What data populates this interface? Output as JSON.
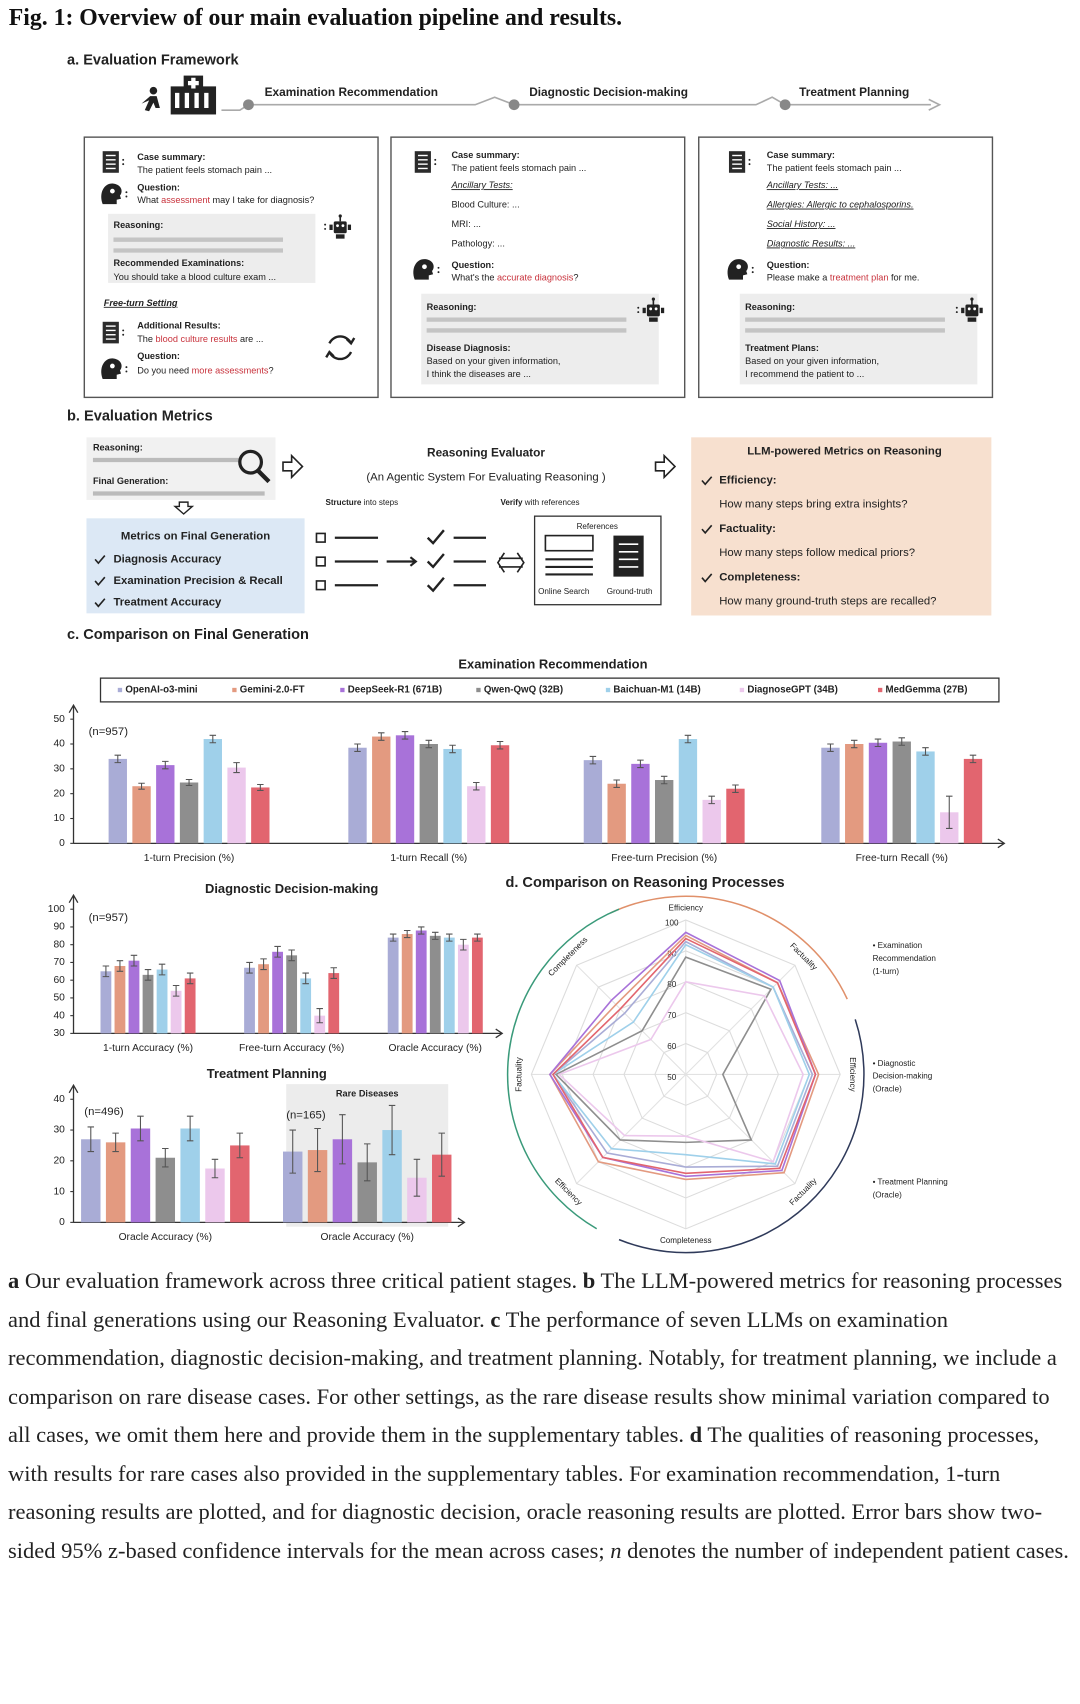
{
  "figure_title": "Fig. 1: Overview of our main evaluation pipeline and results.",
  "panel_a": {
    "heading": "a. Evaluation Framework",
    "stages": [
      "Examination Recommendation",
      "Diagnostic Decision-making",
      "Treatment Planning"
    ],
    "boxes": [
      {
        "case_label": "Case summary:",
        "case_text": "The patient feels stomach pain ...",
        "question_label": "Question:",
        "question": [
          "What ",
          "assessment",
          " may I take for diagnosis?"
        ],
        "reasoning": "Reasoning:",
        "output_label": "Recommended Examinations:",
        "output_text": [
          "You should take a blood culture exam ..."
        ],
        "free_turn": "Free-turn Setting",
        "additional_label": "Additional Results:",
        "additional_text": [
          "The ",
          "blood culture results",
          " are ..."
        ],
        "question2_label": "Question:",
        "question2": [
          "Do you need ",
          "more assessments",
          "?"
        ]
      },
      {
        "case_label": "Case summary:",
        "case_text": "The patient feels stomach pain ...",
        "fields": [
          "Ancillary Tests:",
          "Blood Culture: ...",
          "MRI: ...",
          "Pathology: ..."
        ],
        "question_label": "Question:",
        "question": [
          "What's the ",
          "accurate diagnosis",
          "?"
        ],
        "reasoning": "Reasoning:",
        "output_label": "Disease Diagnosis:",
        "output_text": [
          "Based on your given information,",
          "I think the diseases are ..."
        ]
      },
      {
        "case_label": "Case summary:",
        "case_text": "The patient feels stomach pain ...",
        "fields": [
          "Ancillary Tests: ...",
          "Allergies: Allergic to cephalosporins.",
          "Social History: ...",
          "Diagnostic Results: ..."
        ],
        "question_label": "Question:",
        "question": [
          "Please make a ",
          "treatment plan",
          " for me."
        ],
        "reasoning": "Reasoning:",
        "output_label": "Treatment Plans:",
        "output_text": [
          "Based on your given information,",
          "I recommend the patient to ..."
        ]
      }
    ]
  },
  "panel_b": {
    "heading": "b. Evaluation Metrics",
    "reasoning": "Reasoning:",
    "final_generation": "Final Generation:",
    "evaluator_title": "Reasoning Evaluator",
    "evaluator_subtitle": "(An Agentic System For Evaluating Reasoning )",
    "structure": [
      "Structure",
      " into steps"
    ],
    "verify": [
      "Verify",
      " with references"
    ],
    "references": "References",
    "sources": [
      "Online Search",
      "Ground-truth"
    ],
    "final_metrics": {
      "title": "Metrics on Final Generation",
      "items": [
        "Diagnosis Accuracy",
        "Examination Precision & Recall",
        "Treatment Accuracy"
      ]
    },
    "reasoning_metrics": {
      "title": "LLM-powered Metrics on Reasoning",
      "items": [
        {
          "name": "Efficiency:",
          "question": "How many steps bring extra insights?"
        },
        {
          "name": "Factuality:",
          "question": "How many steps follow medical priors?"
        },
        {
          "name": "Completeness:",
          "question": "How many ground-truth steps are recalled?"
        }
      ]
    }
  },
  "panel_c": {
    "heading": "c. Comparison on Final Generation"
  },
  "panel_d": {
    "heading": "d. Comparison on Reasoning Processes"
  },
  "chart_data": [
    {
      "type": "bar",
      "title": "Examination Recommendation",
      "categories": [
        "1-turn Precision (%)",
        "1-turn Recall (%)",
        "Free-turn Precision (%)",
        "Free-turn Recall (%)"
      ],
      "series": [
        {
          "name": "OpenAI-o3-mini",
          "color": "#a9acd6",
          "values": [
            34,
            38.5,
            33.5,
            38.5
          ],
          "errors": [
            1.5,
            1.5,
            1.5,
            1.5
          ]
        },
        {
          "name": "Gemini-2.0-FT",
          "color": "#e39a80",
          "values": [
            23,
            43,
            24,
            40
          ],
          "errors": [
            1.2,
            1.5,
            1.5,
            1.5
          ]
        },
        {
          "name": "DeepSeek-R1 (671B)",
          "color": "#a872d9",
          "values": [
            31.5,
            43.5,
            32,
            40.5
          ],
          "errors": [
            1.5,
            1.5,
            1.5,
            1.5
          ]
        },
        {
          "name": "Qwen-QwQ (32B)",
          "color": "#8e8e8e",
          "values": [
            24.5,
            40,
            25.5,
            41
          ],
          "errors": [
            1.2,
            1.5,
            1.5,
            1.5
          ]
        },
        {
          "name": "Baichuan-M1 (14B)",
          "color": "#9fd0ea",
          "values": [
            42,
            38,
            42,
            37
          ],
          "errors": [
            1.5,
            1.5,
            1.5,
            1.5
          ]
        },
        {
          "name": "DiagnoseGPT (34B)",
          "color": "#ecc8ec",
          "values": [
            30.5,
            23,
            17.5,
            12.5
          ],
          "errors": [
            2,
            1.5,
            1.5,
            6.5
          ]
        },
        {
          "name": "MedGemma (27B)",
          "color": "#e2656f",
          "values": [
            22.5,
            39.5,
            22,
            34
          ],
          "errors": [
            1.2,
            1.5,
            1.5,
            1.5
          ]
        }
      ],
      "ylim": [
        0,
        50
      ],
      "yticks": [
        0,
        10,
        20,
        30,
        40,
        50
      ],
      "annotations": [
        "(n=957)"
      ]
    },
    {
      "type": "bar",
      "title": "Diagnostic Decision-making",
      "categories": [
        "1-turn Accuracy (%)",
        "Free-turn Accuracy (%)",
        "Oracle Accuracy (%)"
      ],
      "series": [
        {
          "color": "#a9acd6",
          "values": [
            65,
            67,
            84
          ],
          "errors": [
            3,
            3,
            2
          ]
        },
        {
          "color": "#e39a80",
          "values": [
            68,
            69,
            86
          ],
          "errors": [
            3,
            3,
            2
          ]
        },
        {
          "color": "#a872d9",
          "values": [
            71,
            76,
            88
          ],
          "errors": [
            3,
            3,
            2
          ]
        },
        {
          "color": "#8e8e8e",
          "values": [
            63,
            74,
            85
          ],
          "errors": [
            3,
            3,
            2
          ]
        },
        {
          "color": "#9fd0ea",
          "values": [
            66,
            61,
            84
          ],
          "errors": [
            3,
            3,
            2
          ]
        },
        {
          "color": "#ecc8ec",
          "values": [
            54,
            40,
            80
          ],
          "errors": [
            3,
            4,
            3
          ]
        },
        {
          "color": "#e2656f",
          "values": [
            61,
            64,
            84
          ],
          "errors": [
            3,
            3,
            2
          ]
        }
      ],
      "ylim": [
        30,
        100
      ],
      "yticks": [
        30,
        40,
        50,
        60,
        70,
        80,
        90,
        100
      ],
      "annotations": [
        "(n=957)"
      ]
    },
    {
      "type": "bar",
      "title": "Treatment Planning",
      "inset_title": "Rare Diseases",
      "categories": [
        "Oracle Accuracy (%)",
        "Oracle Accuracy (%)"
      ],
      "series": [
        {
          "color": "#a9acd6",
          "values": [
            27,
            23
          ],
          "errors": [
            4,
            7
          ]
        },
        {
          "color": "#e39a80",
          "values": [
            26,
            23.5
          ],
          "errors": [
            3,
            7
          ]
        },
        {
          "color": "#a872d9",
          "values": [
            30.5,
            27
          ],
          "errors": [
            4,
            8
          ]
        },
        {
          "color": "#8e8e8e",
          "values": [
            21,
            19.5
          ],
          "errors": [
            3,
            6
          ]
        },
        {
          "color": "#9fd0ea",
          "values": [
            30.5,
            30
          ],
          "errors": [
            4,
            8
          ]
        },
        {
          "color": "#ecc8ec",
          "values": [
            17.5,
            14.5
          ],
          "errors": [
            3,
            6
          ]
        },
        {
          "color": "#e2656f",
          "values": [
            25,
            22
          ],
          "errors": [
            4,
            7
          ]
        }
      ],
      "ylim": [
        0,
        40
      ],
      "yticks": [
        0,
        10,
        20,
        30,
        40
      ],
      "annotations": [
        "(n=496)",
        "(n=165)"
      ]
    },
    {
      "type": "radar",
      "categories": [
        "Efficiency",
        "Factuality",
        "Efficiency",
        "Factuality",
        "Completeness",
        "Efficiency",
        "Factuality",
        "Completeness"
      ],
      "category_colors": [
        "#e0906a",
        "#e0906a",
        "#2f3a5a",
        "#2f3a5a",
        "#2f3a5a",
        "#3a9a7a",
        "#3a9a7a",
        "#3a9a7a"
      ],
      "rlim": [
        50,
        100
      ],
      "rticks": [
        100,
        90,
        80,
        70,
        60,
        50
      ],
      "series": [
        {
          "color": "#a9acd6",
          "values": [
            93,
            90,
            91,
            92,
            80,
            86,
            93,
            78
          ]
        },
        {
          "color": "#e39a80",
          "values": [
            95,
            92,
            93,
            95,
            84,
            90,
            94,
            82
          ]
        },
        {
          "color": "#a872d9",
          "values": [
            96,
            93,
            92,
            94,
            83,
            88,
            94,
            84
          ]
        },
        {
          "color": "#8e8e8e",
          "values": [
            88,
            89,
            62,
            80,
            72,
            80,
            92,
            70
          ]
        },
        {
          "color": "#9fd0ea",
          "values": [
            92,
            90,
            90,
            91,
            76,
            84,
            93,
            74
          ]
        },
        {
          "color": "#ecc8ec",
          "values": [
            80,
            86,
            88,
            90,
            70,
            78,
            91,
            66
          ]
        },
        {
          "color": "#e2656f",
          "values": [
            94,
            92,
            92,
            93,
            82,
            88,
            93,
            80
          ]
        }
      ],
      "groups": [
        {
          "color": "#e0906a",
          "lines": [
            "• Examination",
            "Recommendation",
            "(1-turn)"
          ]
        },
        {
          "color": "#2f3a5a",
          "lines": [
            "• Diagnostic",
            "Decision-making",
            "(Oracle)"
          ]
        },
        {
          "color": "#3a9a7a",
          "lines": [
            "• Treatment Planning",
            "(Oracle)"
          ]
        }
      ]
    }
  ],
  "caption": [
    "a",
    " Our evaluation framework across three critical patient stages. ",
    "b",
    " The LLM-powered metrics for reasoning processes and final generations using our Reasoning Evaluator. ",
    "c",
    " The performance of seven LLMs on examination recommendation, diagnostic decision-making, and treatment planning. Notably, for treatment planning, we include a comparison on rare disease cases. For other settings, as the rare disease results show minimal variation compared to all cases, we omit them here and provide them in the supplementary tables. ",
    "d",
    " The qualities of reasoning processes, with results for rare cases also provided in the supplementary tables. For examination recommendation, 1-turn reasoning results are plotted, and for diagnostic decision, oracle reasoning results are plotted. Error bars show two-sided 95% z-based confidence intervals for the mean across cases; ",
    "n",
    " denotes the number of independent patient cases."
  ]
}
